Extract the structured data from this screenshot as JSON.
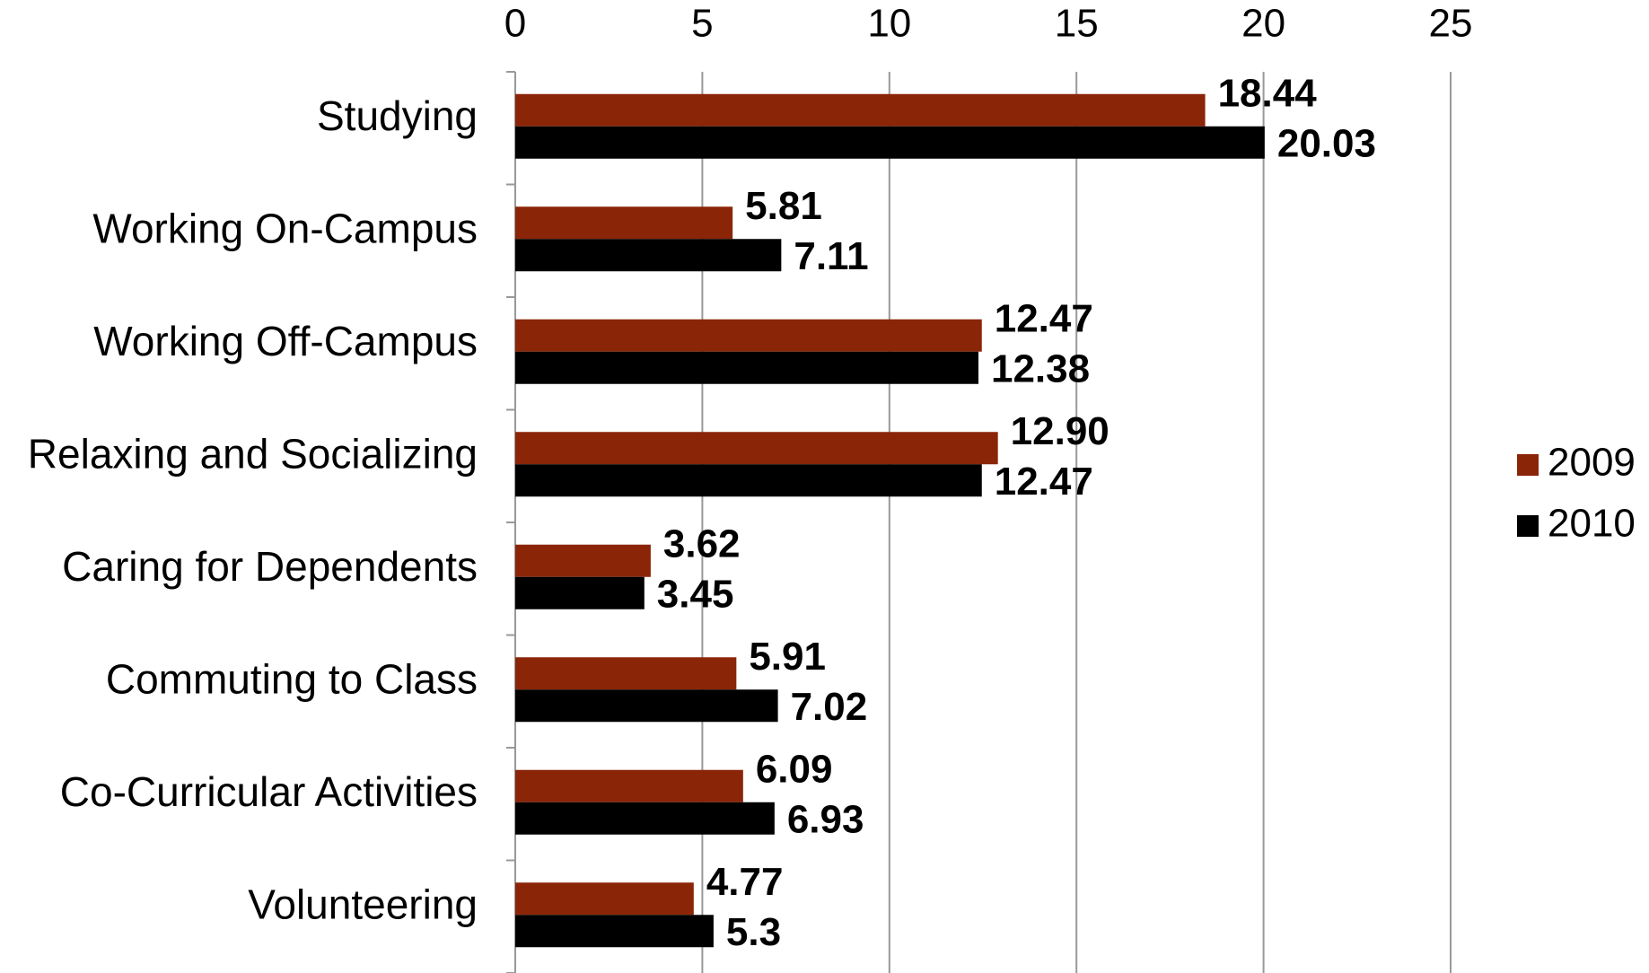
{
  "chart_data": {
    "type": "bar",
    "orientation": "horizontal",
    "categories": [
      "Studying",
      "Working On-Campus",
      "Working Off-Campus",
      "Relaxing and Socializing",
      "Caring for Dependents",
      "Commuting to Class",
      "Co-Curricular Activities",
      "Volunteering"
    ],
    "series": [
      {
        "name": "2009",
        "color": "#8b2508",
        "values": [
          18.44,
          5.81,
          12.47,
          12.9,
          3.62,
          5.91,
          6.09,
          4.77
        ],
        "value_labels": [
          "18.44",
          "5.81",
          "12.47",
          "12.90",
          "3.62",
          "5.91",
          "6.09",
          "4.77"
        ]
      },
      {
        "name": "2010",
        "color": "#000000",
        "values": [
          20.03,
          7.11,
          12.38,
          12.47,
          3.45,
          7.02,
          6.93,
          5.3
        ]
      }
    ],
    "xlim": [
      0,
      25
    ],
    "xticks": [
      0,
      5,
      10,
      15,
      20,
      25
    ],
    "grid": true,
    "legend": "right"
  }
}
